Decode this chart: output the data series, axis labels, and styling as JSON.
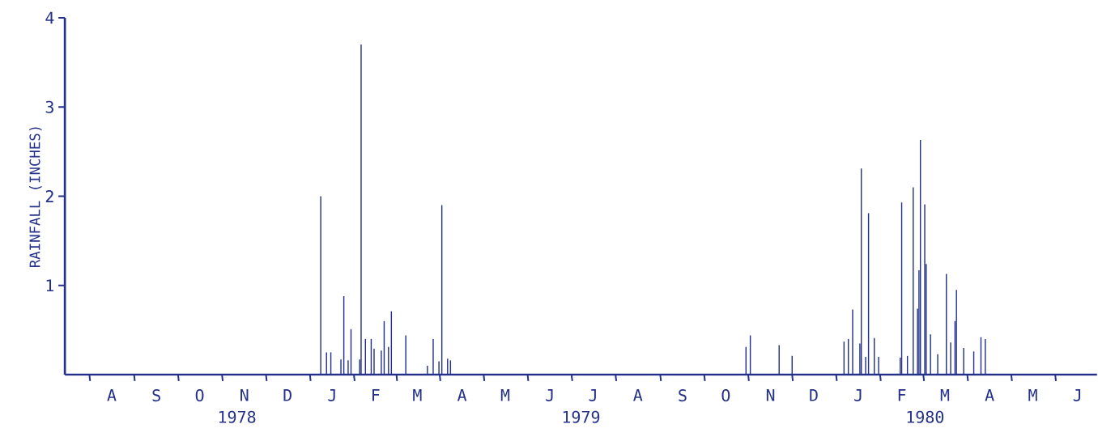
{
  "chart_data": {
    "type": "bar",
    "ylabel": "RAINFALL (INCHES)",
    "color": "#24318a",
    "categories": [
      null,
      null,
      null,
      null,
      null,
      null,
      null,
      null,
      null,
      null,
      null,
      null,
      null,
      null,
      null,
      null,
      null,
      null,
      null,
      null,
      null,
      null,
      null,
      null,
      null,
      null,
      null,
      null,
      null,
      null,
      null,
      null,
      "A",
      null,
      null,
      null,
      null,
      null,
      null,
      null,
      null,
      null,
      null,
      null,
      null,
      null,
      null,
      null,
      null,
      null,
      null,
      null,
      null,
      null,
      null,
      null,
      null,
      null,
      null,
      null,
      null,
      null,
      null,
      "S",
      null,
      null,
      null,
      null,
      null,
      null,
      null,
      null,
      null,
      null,
      null,
      null,
      null,
      null,
      null,
      null,
      null,
      null,
      null,
      null,
      null,
      null,
      null,
      null,
      null,
      null,
      null,
      null,
      null,
      "O",
      null,
      null,
      null,
      null,
      null,
      null,
      null,
      null,
      null,
      null,
      null,
      null,
      null,
      null,
      null,
      null,
      null,
      null,
      null,
      null,
      null,
      null,
      null,
      null,
      null,
      null,
      null,
      null,
      null,
      null,
      "N",
      null,
      null,
      null,
      null,
      null,
      null,
      null,
      null,
      null,
      null,
      null,
      null,
      null,
      null,
      null,
      null,
      null,
      null,
      null,
      null,
      null,
      null,
      null,
      null,
      null,
      null,
      null,
      null,
      null,
      "D",
      null,
      null,
      null,
      null,
      null,
      null,
      null,
      null,
      null,
      null,
      null,
      null,
      null,
      null,
      null,
      null,
      null,
      null,
      null,
      null,
      null,
      null,
      null,
      null,
      null,
      null,
      null,
      null,
      null,
      null,
      "J",
      null,
      null,
      null,
      null,
      null,
      null,
      null,
      null,
      null,
      null,
      null,
      null,
      null,
      null,
      null,
      null,
      null,
      null,
      null,
      null,
      null,
      null,
      null,
      null,
      null,
      null,
      null,
      null,
      null,
      "F",
      null,
      null,
      null,
      null,
      null,
      null,
      null,
      null,
      null,
      null,
      null,
      null,
      null,
      null,
      null,
      null,
      null,
      null,
      null,
      null,
      null,
      null,
      null,
      null,
      null,
      null,
      null,
      null,
      "M",
      null,
      null,
      null,
      null,
      null,
      null,
      null,
      null,
      null,
      null,
      null,
      null,
      null,
      null,
      null,
      null,
      null,
      null,
      null,
      null,
      null,
      null,
      null,
      null,
      null,
      null,
      null,
      null,
      null,
      null,
      "A",
      null,
      null,
      null,
      null,
      null,
      null,
      null,
      null,
      null,
      null,
      null,
      null,
      null,
      null,
      null,
      null,
      null,
      null,
      null,
      null,
      null,
      null,
      null,
      null,
      null,
      null,
      null,
      null,
      null,
      "M",
      null,
      null,
      null,
      null,
      null,
      null,
      null,
      null,
      null,
      null,
      null,
      null,
      null,
      null,
      null,
      null,
      null,
      null,
      null,
      null,
      null,
      null,
      null,
      null,
      null,
      null,
      null,
      null,
      null,
      null,
      "J",
      null,
      null,
      null,
      null,
      null,
      null,
      null,
      null,
      null,
      null,
      null,
      null,
      null,
      null,
      null,
      null,
      null,
      null,
      null,
      null,
      null,
      null,
      null,
      null,
      null,
      null,
      null,
      null,
      null,
      "J",
      null,
      null,
      null,
      null,
      null,
      null,
      null,
      null,
      null,
      null,
      null,
      null,
      null,
      null,
      null,
      null,
      null,
      null,
      null,
      null,
      null,
      null,
      null,
      null,
      null,
      null,
      null,
      null,
      null,
      null,
      "A",
      null,
      null,
      null,
      null,
      null,
      null,
      null,
      null,
      null,
      null,
      null,
      null,
      null,
      null,
      null,
      null,
      null,
      null,
      null,
      null,
      null,
      null,
      null,
      null,
      null,
      null,
      null,
      null,
      null,
      null,
      "S",
      null,
      null,
      null,
      null,
      null,
      null,
      null,
      null,
      null,
      null,
      null,
      null,
      null,
      null,
      null,
      null,
      null,
      null,
      null,
      null,
      null,
      null,
      null,
      null,
      null,
      null,
      null,
      null,
      null,
      "O",
      null,
      null,
      null,
      null,
      null,
      null,
      null,
      null,
      null,
      null,
      null,
      null,
      null,
      null,
      null,
      null,
      null,
      null,
      null,
      null,
      null,
      null,
      null,
      null,
      null,
      null,
      null,
      null,
      null,
      null,
      "N",
      null,
      null,
      null,
      null,
      null,
      null,
      null,
      null,
      null,
      null,
      null,
      null,
      null,
      null,
      null,
      null,
      null,
      null,
      null,
      null,
      null,
      null,
      null,
      null,
      null,
      null,
      null,
      null,
      null,
      "D",
      null,
      null,
      null,
      null,
      null,
      null,
      null,
      null,
      null,
      null,
      null,
      null,
      null,
      null,
      null,
      null,
      null,
      null,
      null,
      null,
      null,
      null,
      null,
      null,
      null,
      null,
      null,
      null,
      null,
      null,
      "J",
      null,
      null,
      null,
      null,
      null,
      null,
      null,
      null,
      null,
      null,
      null,
      null,
      null,
      null,
      null,
      null,
      null,
      null,
      null,
      null,
      null,
      null,
      null,
      null,
      null,
      null,
      null,
      null,
      null,
      "F",
      null,
      null,
      null,
      null,
      null,
      null,
      null,
      null,
      null,
      null,
      null,
      null,
      null,
      null,
      null,
      null,
      null,
      null,
      null,
      null,
      null,
      null,
      null,
      null,
      null,
      null,
      null,
      null,
      null,
      "M",
      null,
      null,
      null,
      null,
      null,
      null,
      null,
      null,
      null,
      null,
      null,
      null,
      null,
      null,
      null,
      null,
      null,
      null,
      null,
      null,
      null,
      null,
      null,
      null,
      null,
      null,
      null,
      null,
      null,
      null,
      "A",
      null,
      null,
      null,
      null,
      null,
      null,
      null,
      null,
      null,
      null,
      null,
      null,
      null,
      null,
      null,
      null,
      null,
      null,
      null,
      null,
      null,
      null,
      null,
      null,
      null,
      null,
      null,
      null,
      null,
      "M",
      null,
      null,
      null,
      null,
      null,
      null,
      null,
      null,
      null,
      null,
      null,
      null,
      null,
      null,
      null,
      null,
      null,
      null,
      null,
      null,
      null,
      null,
      null,
      null,
      null,
      null,
      null,
      null,
      null,
      null,
      "J",
      null,
      null,
      null,
      null,
      null,
      null,
      null,
      null,
      null,
      null,
      null,
      null,
      null
    ],
    "values": [
      null,
      null,
      null,
      null,
      null,
      null,
      null,
      null,
      null,
      null,
      null,
      null,
      null,
      null,
      null,
      null,
      null,
      null,
      null,
      null,
      null,
      null,
      null,
      null,
      null,
      null,
      null,
      null,
      null,
      null,
      null,
      null,
      null,
      null,
      null,
      null,
      null,
      null,
      null,
      null,
      null,
      null,
      null,
      null,
      null,
      null,
      null,
      null,
      null,
      null,
      null,
      null,
      null,
      null,
      null,
      null,
      null,
      null,
      null,
      null,
      null,
      null,
      null,
      null,
      null,
      null,
      null,
      null,
      null,
      null,
      null,
      null,
      null,
      null,
      null,
      null,
      null,
      null,
      null,
      null,
      null,
      null,
      null,
      null,
      null,
      null,
      null,
      null,
      null,
      null,
      null,
      null,
      null,
      null,
      null,
      null,
      null,
      null,
      null,
      null,
      null,
      null,
      null,
      null,
      null,
      null,
      null,
      null,
      null,
      null,
      null,
      null,
      null,
      null,
      null,
      null,
      null,
      null,
      null,
      null,
      null,
      null,
      null,
      null,
      null,
      null,
      null,
      null,
      null,
      null,
      null,
      null,
      null,
      null,
      null,
      null,
      null,
      null,
      null,
      null,
      null,
      null,
      null,
      null,
      null,
      null,
      null,
      null,
      null,
      null,
      null,
      null,
      null,
      null,
      null,
      null,
      null,
      null,
      null,
      null,
      null,
      null,
      null,
      null,
      null,
      null,
      null,
      null,
      null,
      null,
      null,
      null,
      null,
      null,
      null,
      null,
      null,
      2.0,
      null,
      null,
      null,
      0.25,
      null,
      null,
      0.25,
      null,
      null,
      null,
      null,
      null,
      null,
      0.17,
      null,
      0.88,
      null,
      null,
      0.16,
      null,
      0.51,
      null,
      null,
      null,
      null,
      null,
      0.17,
      3.7,
      null,
      null,
      0.4,
      null,
      null,
      null,
      0.4,
      null,
      0.29,
      null,
      null,
      null,
      null,
      0.27,
      null,
      0.6,
      null,
      null,
      0.31,
      null,
      0.71,
      null,
      null,
      null,
      null,
      null,
      null,
      null,
      null,
      null,
      0.44,
      null,
      null,
      null,
      null,
      null,
      null,
      null,
      null,
      null,
      null,
      null,
      null,
      null,
      null,
      0.1,
      null,
      null,
      null,
      0.4,
      null,
      null,
      null,
      0.15,
      null,
      1.9,
      null,
      null,
      null,
      0.18,
      null,
      0.16,
      null,
      null,
      null,
      null,
      null,
      null,
      null,
      null,
      null,
      null,
      null,
      null,
      null,
      null,
      null,
      null,
      null,
      null,
      null,
      null,
      null,
      null,
      null,
      null,
      null,
      null,
      null,
      null,
      null,
      null,
      null,
      null,
      null,
      null,
      null,
      null,
      null,
      null,
      null,
      null,
      null,
      null,
      null,
      null,
      null,
      null,
      null,
      null,
      null,
      null,
      null,
      null,
      null,
      null,
      null,
      null,
      null,
      null,
      null,
      null,
      null,
      null,
      null,
      null,
      null,
      null,
      null,
      null,
      null,
      null,
      null,
      null,
      null,
      null,
      null,
      null,
      null,
      null,
      null,
      null,
      null,
      null,
      null,
      null,
      null,
      null,
      null,
      null,
      null,
      null,
      null,
      null,
      null,
      null,
      null,
      null,
      null,
      null,
      null,
      null,
      null,
      null,
      null,
      null,
      null,
      null,
      null,
      null,
      null,
      null,
      null,
      null,
      null,
      null,
      null,
      null,
      null,
      null,
      null,
      null,
      null,
      null,
      null,
      null,
      null,
      null,
      null,
      null,
      null,
      null,
      null,
      null,
      null,
      null,
      null,
      null,
      null,
      null,
      null,
      null,
      null,
      null,
      null,
      null,
      null,
      null,
      null,
      null,
      null,
      null,
      null,
      null,
      null,
      null,
      null,
      null,
      null,
      null,
      null,
      null,
      null,
      null,
      null,
      null,
      null,
      null,
      null,
      null,
      null,
      null,
      null,
      null,
      null,
      null,
      null,
      null,
      null,
      null,
      null,
      null,
      null,
      null,
      null,
      null,
      null,
      null,
      null,
      null,
      null,
      null,
      null,
      null,
      null,
      null,
      null,
      null,
      null,
      null,
      null,
      null,
      null,
      null,
      null,
      null,
      0.31,
      null,
      null,
      0.44,
      null,
      null,
      null,
      null,
      null,
      null,
      null,
      null,
      null,
      null,
      null,
      null,
      null,
      null,
      null,
      null,
      null,
      null,
      null,
      0.33,
      null,
      null,
      null,
      null,
      null,
      null,
      null,
      null,
      0.21,
      null,
      null,
      null,
      null,
      null,
      null,
      null,
      null,
      null,
      null,
      null,
      null,
      null,
      null,
      null,
      null,
      null,
      null,
      null,
      null,
      null,
      null,
      null,
      null,
      null,
      null,
      null,
      null,
      null,
      null,
      null,
      null,
      null,
      null,
      null,
      0.37,
      null,
      null,
      0.4,
      null,
      null,
      0.73,
      null,
      null,
      null,
      null,
      0.35,
      2.31,
      null,
      null,
      0.2,
      null,
      1.81,
      null,
      null,
      null,
      0.41,
      null,
      null,
      0.2,
      null,
      null,
      null,
      null,
      null,
      null,
      null,
      null,
      null,
      null,
      null,
      null,
      null,
      null,
      0.19,
      1.93,
      null,
      null,
      null,
      0.21,
      null,
      null,
      null,
      2.1,
      null,
      null,
      0.74,
      1.17,
      2.63,
      null,
      null,
      1.91,
      1.24,
      null,
      null,
      0.45,
      null,
      null,
      null,
      null,
      0.23,
      null,
      null,
      null,
      null,
      null,
      1.13,
      null,
      null,
      0.36,
      null,
      null,
      0.6,
      0.95,
      null,
      null,
      null,
      null,
      0.3,
      null,
      null,
      null,
      null,
      null,
      null,
      0.26,
      null,
      null,
      null,
      null,
      0.42,
      null,
      null,
      0.4,
      null,
      null,
      null,
      null,
      null,
      null,
      null,
      null,
      null,
      null,
      null,
      null,
      null,
      null,
      null,
      null,
      null,
      null,
      null,
      null,
      null,
      null,
      null,
      null,
      null,
      null,
      null,
      null,
      null,
      null,
      null,
      null,
      null,
      null,
      null,
      null,
      null,
      null,
      null,
      null,
      null,
      null,
      null,
      null,
      null,
      null,
      null,
      null,
      null,
      null,
      null,
      null,
      null,
      null,
      null,
      null,
      null,
      null,
      null,
      null,
      null,
      null,
      null,
      null,
      null,
      null,
      null,
      null,
      null,
      null,
      null,
      null,
      null,
      null,
      null,
      null,
      null
    ],
    "ylim": [
      0,
      4
    ],
    "yticks": [
      1,
      2,
      3,
      4
    ],
    "annotations": [
      "1978",
      "1979",
      "1980"
    ]
  }
}
